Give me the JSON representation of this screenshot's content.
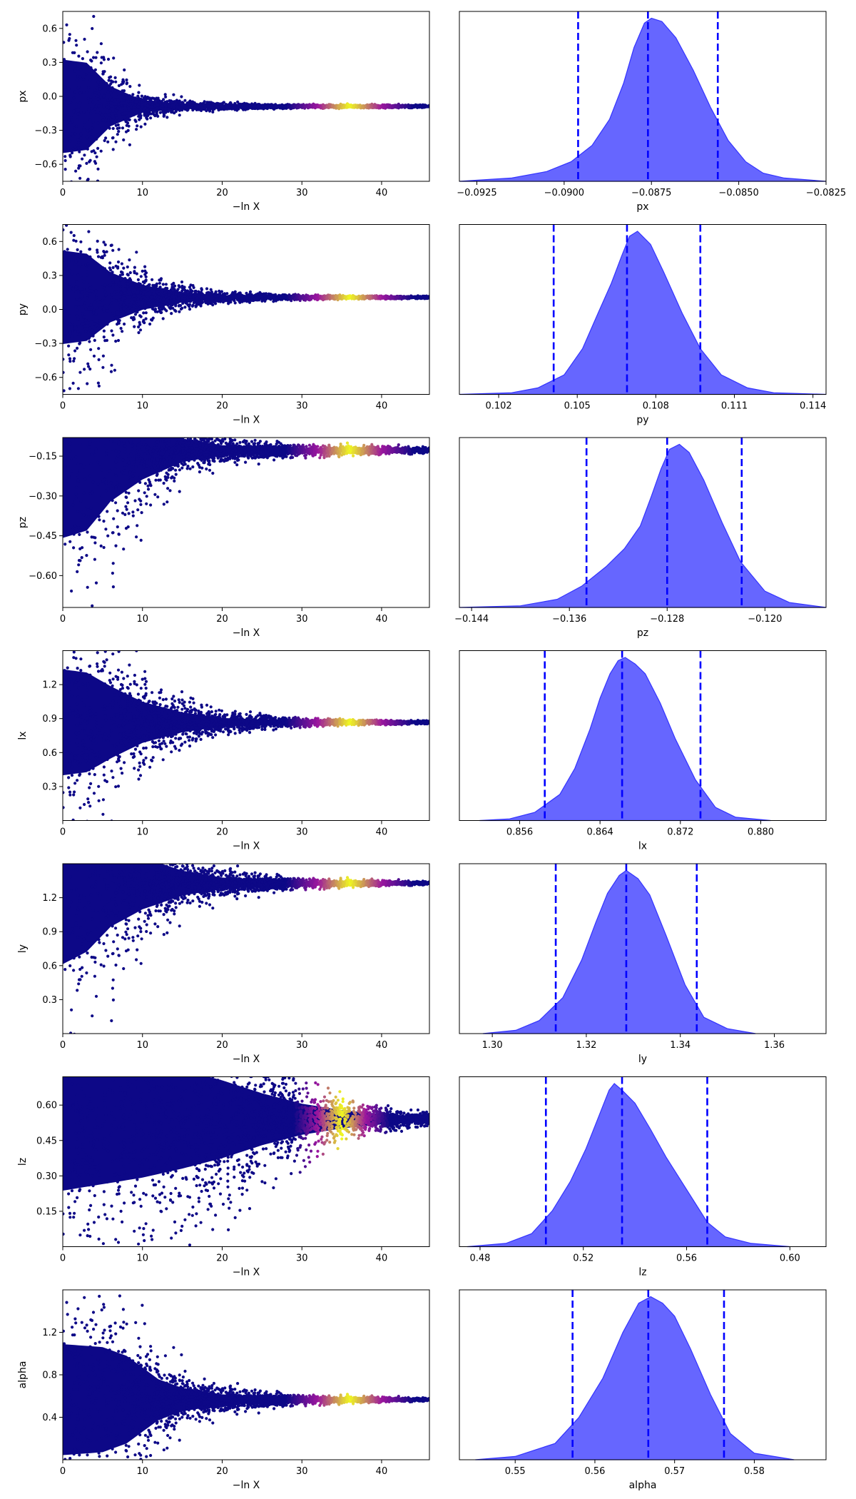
{
  "figure": {
    "rows": [
      "px",
      "py",
      "pz",
      "lx",
      "ly",
      "lz",
      "alpha"
    ],
    "colors": {
      "trace_low": "#0d0887",
      "trace_mid": "#9c179e",
      "trace_peak": "#f0f921",
      "posterior_fill": "#6666ff",
      "posterior_edge": "#3333ff",
      "quantile_line": "#0000ff"
    }
  },
  "chart_data": [
    {
      "type": "scatter",
      "role": "trace",
      "param": "px",
      "xlabel": "−ln X",
      "ylabel": "px",
      "xlim": [
        0,
        46
      ],
      "ylim": [
        -0.75,
        0.75
      ],
      "xticks": [
        0,
        10,
        20,
        30,
        40
      ],
      "yticks": [
        -0.6,
        -0.3,
        0.0,
        0.3,
        0.6
      ],
      "ytick_labels": [
        "−0.6",
        "−0.3",
        "0.0",
        "0.3",
        "0.6"
      ],
      "center": -0.088,
      "spread": [
        [
          0,
          0.75
        ],
        [
          3,
          0.7
        ],
        [
          6,
          0.32
        ],
        [
          10,
          0.1
        ],
        [
          15,
          0.04
        ],
        [
          20,
          0.022
        ],
        [
          30,
          0.012
        ],
        [
          46,
          0.008
        ]
      ],
      "bright_x": [
        31,
        41
      ]
    },
    {
      "type": "area",
      "role": "posterior",
      "param": "px",
      "xlabel": "px",
      "xlim": [
        -0.093,
        -0.0825
      ],
      "xticks": [
        -0.0925,
        -0.09,
        -0.0875,
        -0.085,
        -0.0825
      ],
      "xtick_labels": [
        "−0.0925",
        "−0.0900",
        "−0.0875",
        "−0.0850",
        "−0.0825"
      ],
      "x": [
        -0.093,
        -0.0915,
        -0.0905,
        -0.0898,
        -0.0892,
        -0.0887,
        -0.0883,
        -0.088,
        -0.0877,
        -0.0875,
        -0.0872,
        -0.0868,
        -0.0863,
        -0.0858,
        -0.0853,
        -0.0848,
        -0.0843,
        -0.0837,
        -0.0825
      ],
      "y": [
        0.0,
        0.02,
        0.06,
        0.12,
        0.22,
        0.38,
        0.6,
        0.82,
        0.97,
        1.0,
        0.98,
        0.88,
        0.68,
        0.45,
        0.25,
        0.12,
        0.05,
        0.02,
        0.0
      ],
      "quantiles": [
        -0.0896,
        -0.0876,
        -0.0856
      ]
    },
    {
      "type": "scatter",
      "role": "trace",
      "param": "py",
      "xlabel": "−ln X",
      "ylabel": "py",
      "xlim": [
        0,
        46
      ],
      "ylim": [
        -0.75,
        0.75
      ],
      "xticks": [
        0,
        10,
        20,
        30,
        40
      ],
      "yticks": [
        -0.6,
        -0.3,
        0.0,
        0.3,
        0.6
      ],
      "ytick_labels": [
        "−0.6",
        "−0.3",
        "0.0",
        "0.3",
        "0.6"
      ],
      "center": 0.107,
      "spread": [
        [
          0,
          0.75
        ],
        [
          3,
          0.7
        ],
        [
          6,
          0.4
        ],
        [
          10,
          0.2
        ],
        [
          15,
          0.08
        ],
        [
          20,
          0.035
        ],
        [
          30,
          0.015
        ],
        [
          46,
          0.008
        ]
      ],
      "bright_x": [
        31,
        41
      ]
    },
    {
      "type": "area",
      "role": "posterior",
      "param": "py",
      "xlabel": "py",
      "xlim": [
        0.1005,
        0.1145
      ],
      "xticks": [
        0.102,
        0.105,
        0.108,
        0.111,
        0.114
      ],
      "xtick_labels": [
        "0.102",
        "0.105",
        "0.108",
        "0.111",
        "0.114"
      ],
      "x": [
        0.1005,
        0.1025,
        0.1035,
        0.1045,
        0.1052,
        0.1058,
        0.1063,
        0.1067,
        0.107,
        0.1073,
        0.1078,
        0.1083,
        0.109,
        0.1097,
        0.1105,
        0.1115,
        0.1125,
        0.1145
      ],
      "y": [
        0.0,
        0.01,
        0.04,
        0.12,
        0.28,
        0.5,
        0.68,
        0.85,
        0.97,
        1.0,
        0.92,
        0.75,
        0.5,
        0.28,
        0.12,
        0.04,
        0.01,
        0.0
      ],
      "quantiles": [
        0.1041,
        0.1069,
        0.1097
      ]
    },
    {
      "type": "scatter",
      "role": "trace",
      "param": "pz",
      "xlabel": "−ln X",
      "ylabel": "pz",
      "xlim": [
        0,
        46
      ],
      "ylim": [
        -0.72,
        -0.08
      ],
      "xticks": [
        0,
        10,
        20,
        30,
        40
      ],
      "yticks": [
        -0.6,
        -0.45,
        -0.3,
        -0.15
      ],
      "ytick_labels": [
        "−0.60",
        "−0.45",
        "−0.30",
        "−0.15"
      ],
      "center": -0.128,
      "spread": [
        [
          0,
          0.6
        ],
        [
          3,
          0.55
        ],
        [
          6,
          0.35
        ],
        [
          10,
          0.2
        ],
        [
          15,
          0.08
        ],
        [
          20,
          0.035
        ],
        [
          30,
          0.015
        ],
        [
          46,
          0.008
        ]
      ],
      "bright_x": [
        31,
        41
      ]
    },
    {
      "type": "area",
      "role": "posterior",
      "param": "pz",
      "xlabel": "pz",
      "xlim": [
        -0.145,
        -0.115
      ],
      "xticks": [
        -0.144,
        -0.136,
        -0.128,
        -0.12
      ],
      "xtick_labels": [
        "−0.144",
        "−0.136",
        "−0.128",
        "−0.120"
      ],
      "x": [
        -0.145,
        -0.14,
        -0.137,
        -0.135,
        -0.133,
        -0.1315,
        -0.1302,
        -0.1293,
        -0.1285,
        -0.1278,
        -0.127,
        -0.1262,
        -0.125,
        -0.1235,
        -0.122,
        -0.12,
        -0.118,
        -0.115
      ],
      "y": [
        0.0,
        0.01,
        0.05,
        0.13,
        0.25,
        0.36,
        0.5,
        0.68,
        0.85,
        0.97,
        1.0,
        0.95,
        0.78,
        0.52,
        0.28,
        0.1,
        0.03,
        0.0
      ],
      "quantiles": [
        -0.1346,
        -0.128,
        -0.1219
      ]
    },
    {
      "type": "scatter",
      "role": "trace",
      "param": "lx",
      "xlabel": "−ln X",
      "ylabel": "lx",
      "xlim": [
        0,
        46
      ],
      "ylim": [
        0.0,
        1.5
      ],
      "xticks": [
        0,
        10,
        20,
        30,
        40
      ],
      "yticks": [
        0.3,
        0.6,
        0.9,
        1.2
      ],
      "ytick_labels": [
        "0.3",
        "0.6",
        "0.9",
        "1.2"
      ],
      "center": 0.867,
      "spread": [
        [
          0,
          0.85
        ],
        [
          3,
          0.8
        ],
        [
          6,
          0.58
        ],
        [
          10,
          0.33
        ],
        [
          15,
          0.16
        ],
        [
          20,
          0.07
        ],
        [
          30,
          0.025
        ],
        [
          46,
          0.01
        ]
      ],
      "bright_x": [
        31,
        41
      ]
    },
    {
      "type": "area",
      "role": "posterior",
      "param": "lx",
      "xlabel": "lx",
      "xlim": [
        0.85,
        0.8865
      ],
      "xticks": [
        0.856,
        0.864,
        0.872,
        0.88
      ],
      "xtick_labels": [
        "0.856",
        "0.864",
        "0.872",
        "0.880"
      ],
      "x": [
        0.852,
        0.855,
        0.8575,
        0.86,
        0.8615,
        0.863,
        0.864,
        0.865,
        0.8658,
        0.8665,
        0.8675,
        0.8685,
        0.87,
        0.8715,
        0.8735,
        0.8755,
        0.8775,
        0.881
      ],
      "y": [
        0.0,
        0.01,
        0.05,
        0.16,
        0.32,
        0.56,
        0.75,
        0.9,
        0.98,
        1.0,
        0.96,
        0.9,
        0.72,
        0.5,
        0.25,
        0.08,
        0.02,
        0.0
      ],
      "quantiles": [
        0.8585,
        0.8662,
        0.874
      ]
    },
    {
      "type": "scatter",
      "role": "trace",
      "param": "ly",
      "xlabel": "−ln X",
      "ylabel": "ly",
      "xlim": [
        0,
        46
      ],
      "ylim": [
        0.0,
        1.5
      ],
      "xticks": [
        0,
        10,
        20,
        30,
        40
      ],
      "yticks": [
        0.3,
        0.6,
        0.9,
        1.2
      ],
      "ytick_labels": [
        "0.3",
        "0.6",
        "0.9",
        "1.2"
      ],
      "center": 1.328,
      "spread": [
        [
          0,
          1.3
        ],
        [
          3,
          1.1
        ],
        [
          6,
          0.7
        ],
        [
          10,
          0.42
        ],
        [
          15,
          0.2
        ],
        [
          20,
          0.09
        ],
        [
          30,
          0.03
        ],
        [
          46,
          0.01
        ]
      ],
      "bright_x": [
        31,
        41
      ]
    },
    {
      "type": "area",
      "role": "posterior",
      "param": "ly",
      "xlabel": "ly",
      "xlim": [
        1.293,
        1.371
      ],
      "xticks": [
        1.3,
        1.32,
        1.34,
        1.36
      ],
      "xtick_labels": [
        "1.30",
        "1.32",
        "1.34",
        "1.36"
      ],
      "x": [
        1.298,
        1.305,
        1.31,
        1.315,
        1.319,
        1.322,
        1.3245,
        1.327,
        1.3285,
        1.331,
        1.3335,
        1.337,
        1.341,
        1.345,
        1.35,
        1.356
      ],
      "y": [
        0.0,
        0.02,
        0.08,
        0.22,
        0.45,
        0.68,
        0.86,
        0.97,
        1.0,
        0.95,
        0.85,
        0.6,
        0.3,
        0.1,
        0.03,
        0.0
      ],
      "quantiles": [
        1.3135,
        1.3285,
        1.3435
      ]
    },
    {
      "type": "scatter",
      "role": "trace",
      "param": "lz",
      "xlabel": "−ln X",
      "ylabel": "lz",
      "xlim": [
        0,
        46
      ],
      "ylim": [
        0.0,
        0.72
      ],
      "xticks": [
        0,
        10,
        20,
        30,
        40
      ],
      "yticks": [
        0.15,
        0.3,
        0.45,
        0.6
      ],
      "ytick_labels": [
        "0.15",
        "0.30",
        "0.45",
        "0.60"
      ],
      "center": 0.54,
      "spread": [
        [
          0,
          0.55
        ],
        [
          5,
          0.5
        ],
        [
          10,
          0.45
        ],
        [
          15,
          0.38
        ],
        [
          20,
          0.3
        ],
        [
          25,
          0.2
        ],
        [
          30,
          0.12
        ],
        [
          35,
          0.07
        ],
        [
          40,
          0.04
        ],
        [
          46,
          0.02
        ]
      ],
      "bright_x": [
        32,
        38
      ]
    },
    {
      "type": "area",
      "role": "posterior",
      "param": "lz",
      "xlabel": "lz",
      "xlim": [
        0.472,
        0.614
      ],
      "xticks": [
        0.48,
        0.52,
        0.56,
        0.6
      ],
      "xtick_labels": [
        "0.48",
        "0.52",
        "0.56",
        "0.60"
      ],
      "x": [
        0.475,
        0.49,
        0.5,
        0.508,
        0.515,
        0.521,
        0.526,
        0.53,
        0.532,
        0.535,
        0.54,
        0.546,
        0.552,
        0.556,
        0.562,
        0.568,
        0.575,
        0.585,
        0.6
      ],
      "y": [
        0.0,
        0.02,
        0.08,
        0.22,
        0.4,
        0.6,
        0.8,
        0.96,
        1.0,
        0.96,
        0.88,
        0.72,
        0.55,
        0.45,
        0.3,
        0.15,
        0.06,
        0.02,
        0.0
      ],
      "quantiles": [
        0.5055,
        0.535,
        0.568
      ]
    },
    {
      "type": "scatter",
      "role": "trace",
      "param": "alpha",
      "xlabel": "−ln X",
      "ylabel": "alpha",
      "xlim": [
        0,
        46
      ],
      "ylim": [
        0.0,
        1.6
      ],
      "xticks": [
        0,
        10,
        20,
        30,
        40
      ],
      "yticks": [
        0.4,
        0.8,
        1.2
      ],
      "ytick_labels": [
        "0.4",
        "0.8",
        "1.2"
      ],
      "center": 0.566,
      "spread": [
        [
          0,
          0.95
        ],
        [
          5,
          0.9
        ],
        [
          8,
          0.75
        ],
        [
          12,
          0.35
        ],
        [
          15,
          0.2
        ],
        [
          20,
          0.09
        ],
        [
          30,
          0.03
        ],
        [
          46,
          0.01
        ]
      ],
      "bright_x": [
        31,
        41
      ]
    },
    {
      "type": "area",
      "role": "posterior",
      "param": "alpha",
      "xlabel": "alpha",
      "xlim": [
        0.543,
        0.589
      ],
      "xticks": [
        0.55,
        0.56,
        0.57,
        0.58
      ],
      "xtick_labels": [
        "0.55",
        "0.56",
        "0.57",
        "0.58"
      ],
      "x": [
        0.545,
        0.55,
        0.555,
        0.558,
        0.561,
        0.5635,
        0.5655,
        0.567,
        0.5685,
        0.57,
        0.572,
        0.5745,
        0.577,
        0.58,
        0.585
      ],
      "y": [
        0.0,
        0.02,
        0.1,
        0.26,
        0.5,
        0.78,
        0.96,
        1.0,
        0.96,
        0.88,
        0.68,
        0.4,
        0.16,
        0.04,
        0.0
      ],
      "quantiles": [
        0.5572,
        0.5667,
        0.5762
      ]
    }
  ]
}
